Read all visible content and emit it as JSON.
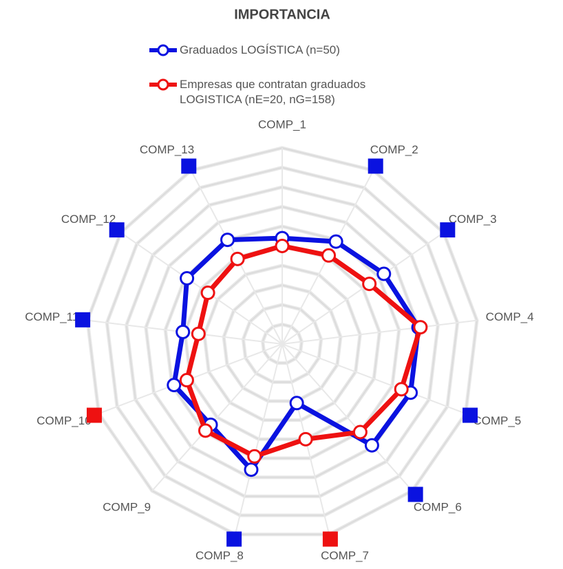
{
  "chart_data": {
    "type": "radar",
    "title": "IMPORTANCIA",
    "categories": [
      "COMP_1",
      "COMP_2",
      "COMP_3",
      "COMP_4",
      "COMP_5",
      "COMP_6",
      "COMP_7",
      "COMP_8",
      "COMP_9",
      "COMP_10",
      "COMP_11",
      "COMP_12",
      "COMP_13"
    ],
    "series": [
      {
        "name": "Graduados LOGÍSTICA (n=50)",
        "color": "#0a12e0",
        "values": [
          5.4,
          5.9,
          6.3,
          7.0,
          7.0,
          6.9,
          3.1,
          6.6,
          5.5,
          5.9,
          5.1,
          5.9,
          6.0
        ]
      },
      {
        "name": "Empresas que contratan graduados LOGISTICA (nE=20, nG=158)",
        "color": "#ee1111",
        "values": [
          5.0,
          5.1,
          5.4,
          7.1,
          6.5,
          6.0,
          5.0,
          5.9,
          5.9,
          5.2,
          4.3,
          4.6,
          4.9
        ]
      }
    ],
    "marker_colors": [
      null,
      "#0a12e0",
      "#0a12e0",
      null,
      "#0a12e0",
      "#0a12e0",
      "#ee1111",
      "#0a12e0",
      null,
      "#ee1111",
      "#0a12e0",
      "#0a12e0",
      "#0a12e0"
    ],
    "ylim": [
      0,
      10
    ],
    "yticks": [
      1,
      2,
      3,
      4,
      5,
      6,
      7,
      8,
      9,
      10
    ],
    "grid": true
  }
}
